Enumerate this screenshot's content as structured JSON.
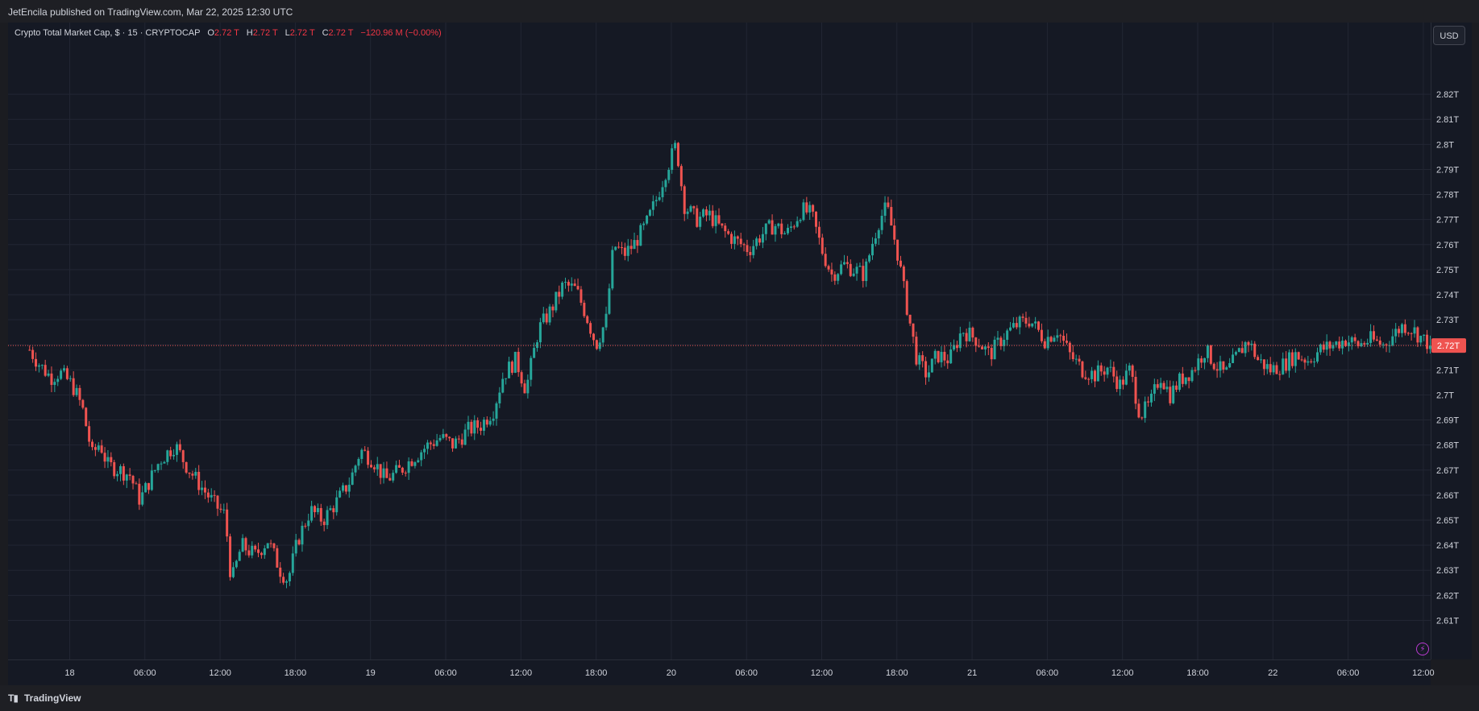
{
  "header": {
    "published_text": "JetEncila published on TradingView.com, Mar 22, 2025 12:30 UTC"
  },
  "legend": {
    "symbol": "Crypto Total Market Cap, $ · 15 · CRYPTOCAP",
    "o_label": "O",
    "o_value": "2.72 T",
    "h_label": "H",
    "h_value": "2.72 T",
    "l_label": "L",
    "l_value": "2.72 T",
    "c_label": "C",
    "c_value": "2.72 T",
    "change": "−120.96 M (−0.00%)"
  },
  "currency_button": "USD",
  "footer": {
    "logo_text": "TradingView"
  },
  "colors": {
    "up": "#26a69a",
    "down": "#ef5350",
    "background": "#151924",
    "grid": "#222633",
    "price_line": "#ef5350"
  },
  "chart_data": {
    "type": "candlestick",
    "title": "Crypto Total Market Cap, $ · 15 · CRYPTOCAP",
    "interval": "15",
    "ylim": [
      2.605,
      2.83
    ],
    "y_ticks": [
      "2.82T",
      "2.81T",
      "2.8T",
      "2.79T",
      "2.78T",
      "2.77T",
      "2.76T",
      "2.75T",
      "2.74T",
      "2.73T",
      "2.72T",
      "2.71T",
      "2.7T",
      "2.69T",
      "2.68T",
      "2.67T",
      "2.66T",
      "2.65T",
      "2.64T",
      "2.63T",
      "2.62T",
      "2.61T"
    ],
    "y_tick_values": [
      2.82,
      2.81,
      2.8,
      2.79,
      2.78,
      2.77,
      2.76,
      2.75,
      2.74,
      2.73,
      2.72,
      2.71,
      2.7,
      2.69,
      2.68,
      2.67,
      2.66,
      2.65,
      2.64,
      2.63,
      2.62,
      2.61
    ],
    "x_ticks": [
      {
        "label": "18",
        "hours": 24
      },
      {
        "label": "06:00",
        "hours": 30
      },
      {
        "label": "12:00",
        "hours": 36
      },
      {
        "label": "18:00",
        "hours": 42
      },
      {
        "label": "19",
        "hours": 48
      },
      {
        "label": "06:00",
        "hours": 54
      },
      {
        "label": "12:00",
        "hours": 60
      },
      {
        "label": "18:00",
        "hours": 66
      },
      {
        "label": "20",
        "hours": 72
      },
      {
        "label": "06:00",
        "hours": 78
      },
      {
        "label": "12:00",
        "hours": 84
      },
      {
        "label": "18:00",
        "hours": 90
      },
      {
        "label": "21",
        "hours": 96
      },
      {
        "label": "06:00",
        "hours": 102
      },
      {
        "label": "12:00",
        "hours": 108
      },
      {
        "label": "18:00",
        "hours": 114
      },
      {
        "label": "22",
        "hours": 120
      },
      {
        "label": "06:00",
        "hours": 126
      },
      {
        "label": "12:00",
        "hours": 132
      }
    ],
    "current_price_label": "2.72T",
    "current_price": 2.7197,
    "close_path": [
      [
        20.8,
        2.718
      ],
      [
        21.6,
        2.712
      ],
      [
        22.5,
        2.707
      ],
      [
        23.2,
        2.709
      ],
      [
        24.2,
        2.704
      ],
      [
        25.0,
        2.695
      ],
      [
        25.8,
        2.676
      ],
      [
        26.4,
        2.681
      ],
      [
        27.0,
        2.672
      ],
      [
        28.0,
        2.67
      ],
      [
        28.8,
        2.668
      ],
      [
        29.6,
        2.658
      ],
      [
        30.4,
        2.666
      ],
      [
        31.2,
        2.674
      ],
      [
        32.4,
        2.68
      ],
      [
        33.4,
        2.671
      ],
      [
        34.4,
        2.664
      ],
      [
        35.6,
        2.656
      ],
      [
        36.4,
        2.652
      ],
      [
        36.9,
        2.625
      ],
      [
        37.7,
        2.64
      ],
      [
        38.8,
        2.636
      ],
      [
        39.8,
        2.642
      ],
      [
        40.8,
        2.63
      ],
      [
        41.4,
        2.626
      ],
      [
        42.2,
        2.642
      ],
      [
        43.2,
        2.654
      ],
      [
        44.2,
        2.65
      ],
      [
        45.4,
        2.658
      ],
      [
        46.4,
        2.666
      ],
      [
        47.2,
        2.678
      ],
      [
        48.2,
        2.674
      ],
      [
        49.2,
        2.666
      ],
      [
        50.4,
        2.67
      ],
      [
        51.4,
        2.675
      ],
      [
        52.6,
        2.68
      ],
      [
        53.6,
        2.683
      ],
      [
        54.6,
        2.68
      ],
      [
        55.8,
        2.686
      ],
      [
        56.8,
        2.688
      ],
      [
        57.8,
        2.694
      ],
      [
        58.6,
        2.708
      ],
      [
        59.6,
        2.714
      ],
      [
        60.4,
        2.702
      ],
      [
        61.4,
        2.726
      ],
      [
        62.4,
        2.734
      ],
      [
        63.4,
        2.744
      ],
      [
        64.4,
        2.742
      ],
      [
        65.2,
        2.732
      ],
      [
        66.0,
        2.72
      ],
      [
        66.8,
        2.73
      ],
      [
        67.4,
        2.76
      ],
      [
        68.2,
        2.756
      ],
      [
        69.0,
        2.76
      ],
      [
        70.0,
        2.768
      ],
      [
        70.8,
        2.778
      ],
      [
        71.6,
        2.79
      ],
      [
        72.4,
        2.8
      ],
      [
        73.0,
        2.776
      ],
      [
        74.0,
        2.77
      ],
      [
        75.0,
        2.772
      ],
      [
        76.0,
        2.766
      ],
      [
        77.0,
        2.762
      ],
      [
        78.2,
        2.758
      ],
      [
        79.2,
        2.764
      ],
      [
        80.2,
        2.768
      ],
      [
        81.2,
        2.764
      ],
      [
        82.4,
        2.774
      ],
      [
        83.2,
        2.772
      ],
      [
        84.0,
        2.758
      ],
      [
        84.8,
        2.748
      ],
      [
        85.8,
        2.752
      ],
      [
        86.6,
        2.75
      ],
      [
        87.4,
        2.748
      ],
      [
        88.0,
        2.76
      ],
      [
        88.6,
        2.77
      ],
      [
        89.2,
        2.775
      ],
      [
        90.0,
        2.758
      ],
      [
        90.8,
        2.735
      ],
      [
        91.6,
        2.714
      ],
      [
        92.4,
        2.708
      ],
      [
        93.2,
        2.716
      ],
      [
        94.2,
        2.714
      ],
      [
        95.2,
        2.726
      ],
      [
        96.4,
        2.722
      ],
      [
        97.4,
        2.716
      ],
      [
        98.6,
        2.724
      ],
      [
        99.6,
        2.728
      ],
      [
        100.6,
        2.73
      ],
      [
        101.8,
        2.722
      ],
      [
        102.8,
        2.726
      ],
      [
        103.8,
        2.716
      ],
      [
        104.8,
        2.71
      ],
      [
        105.8,
        2.708
      ],
      [
        106.8,
        2.711
      ],
      [
        107.8,
        2.704
      ],
      [
        108.6,
        2.71
      ],
      [
        109.4,
        2.692
      ],
      [
        110.2,
        2.696
      ],
      [
        111.0,
        2.708
      ],
      [
        111.8,
        2.7
      ],
      [
        112.6,
        2.706
      ],
      [
        113.6,
        2.71
      ],
      [
        114.6,
        2.718
      ],
      [
        115.4,
        2.712
      ],
      [
        116.2,
        2.708
      ],
      [
        117.2,
        2.716
      ],
      [
        118.0,
        2.722
      ],
      [
        118.8,
        2.714
      ],
      [
        119.8,
        2.71
      ],
      [
        120.8,
        2.712
      ],
      [
        121.8,
        2.716
      ],
      [
        122.8,
        2.714
      ],
      [
        123.8,
        2.718
      ],
      [
        124.8,
        2.72
      ],
      [
        125.8,
        2.722
      ],
      [
        126.8,
        2.72
      ],
      [
        127.8,
        2.722
      ],
      [
        128.8,
        2.72
      ],
      [
        129.6,
        2.724
      ],
      [
        130.4,
        2.728
      ],
      [
        131.2,
        2.726
      ],
      [
        132.0,
        2.722
      ],
      [
        132.6,
        2.72
      ]
    ]
  }
}
